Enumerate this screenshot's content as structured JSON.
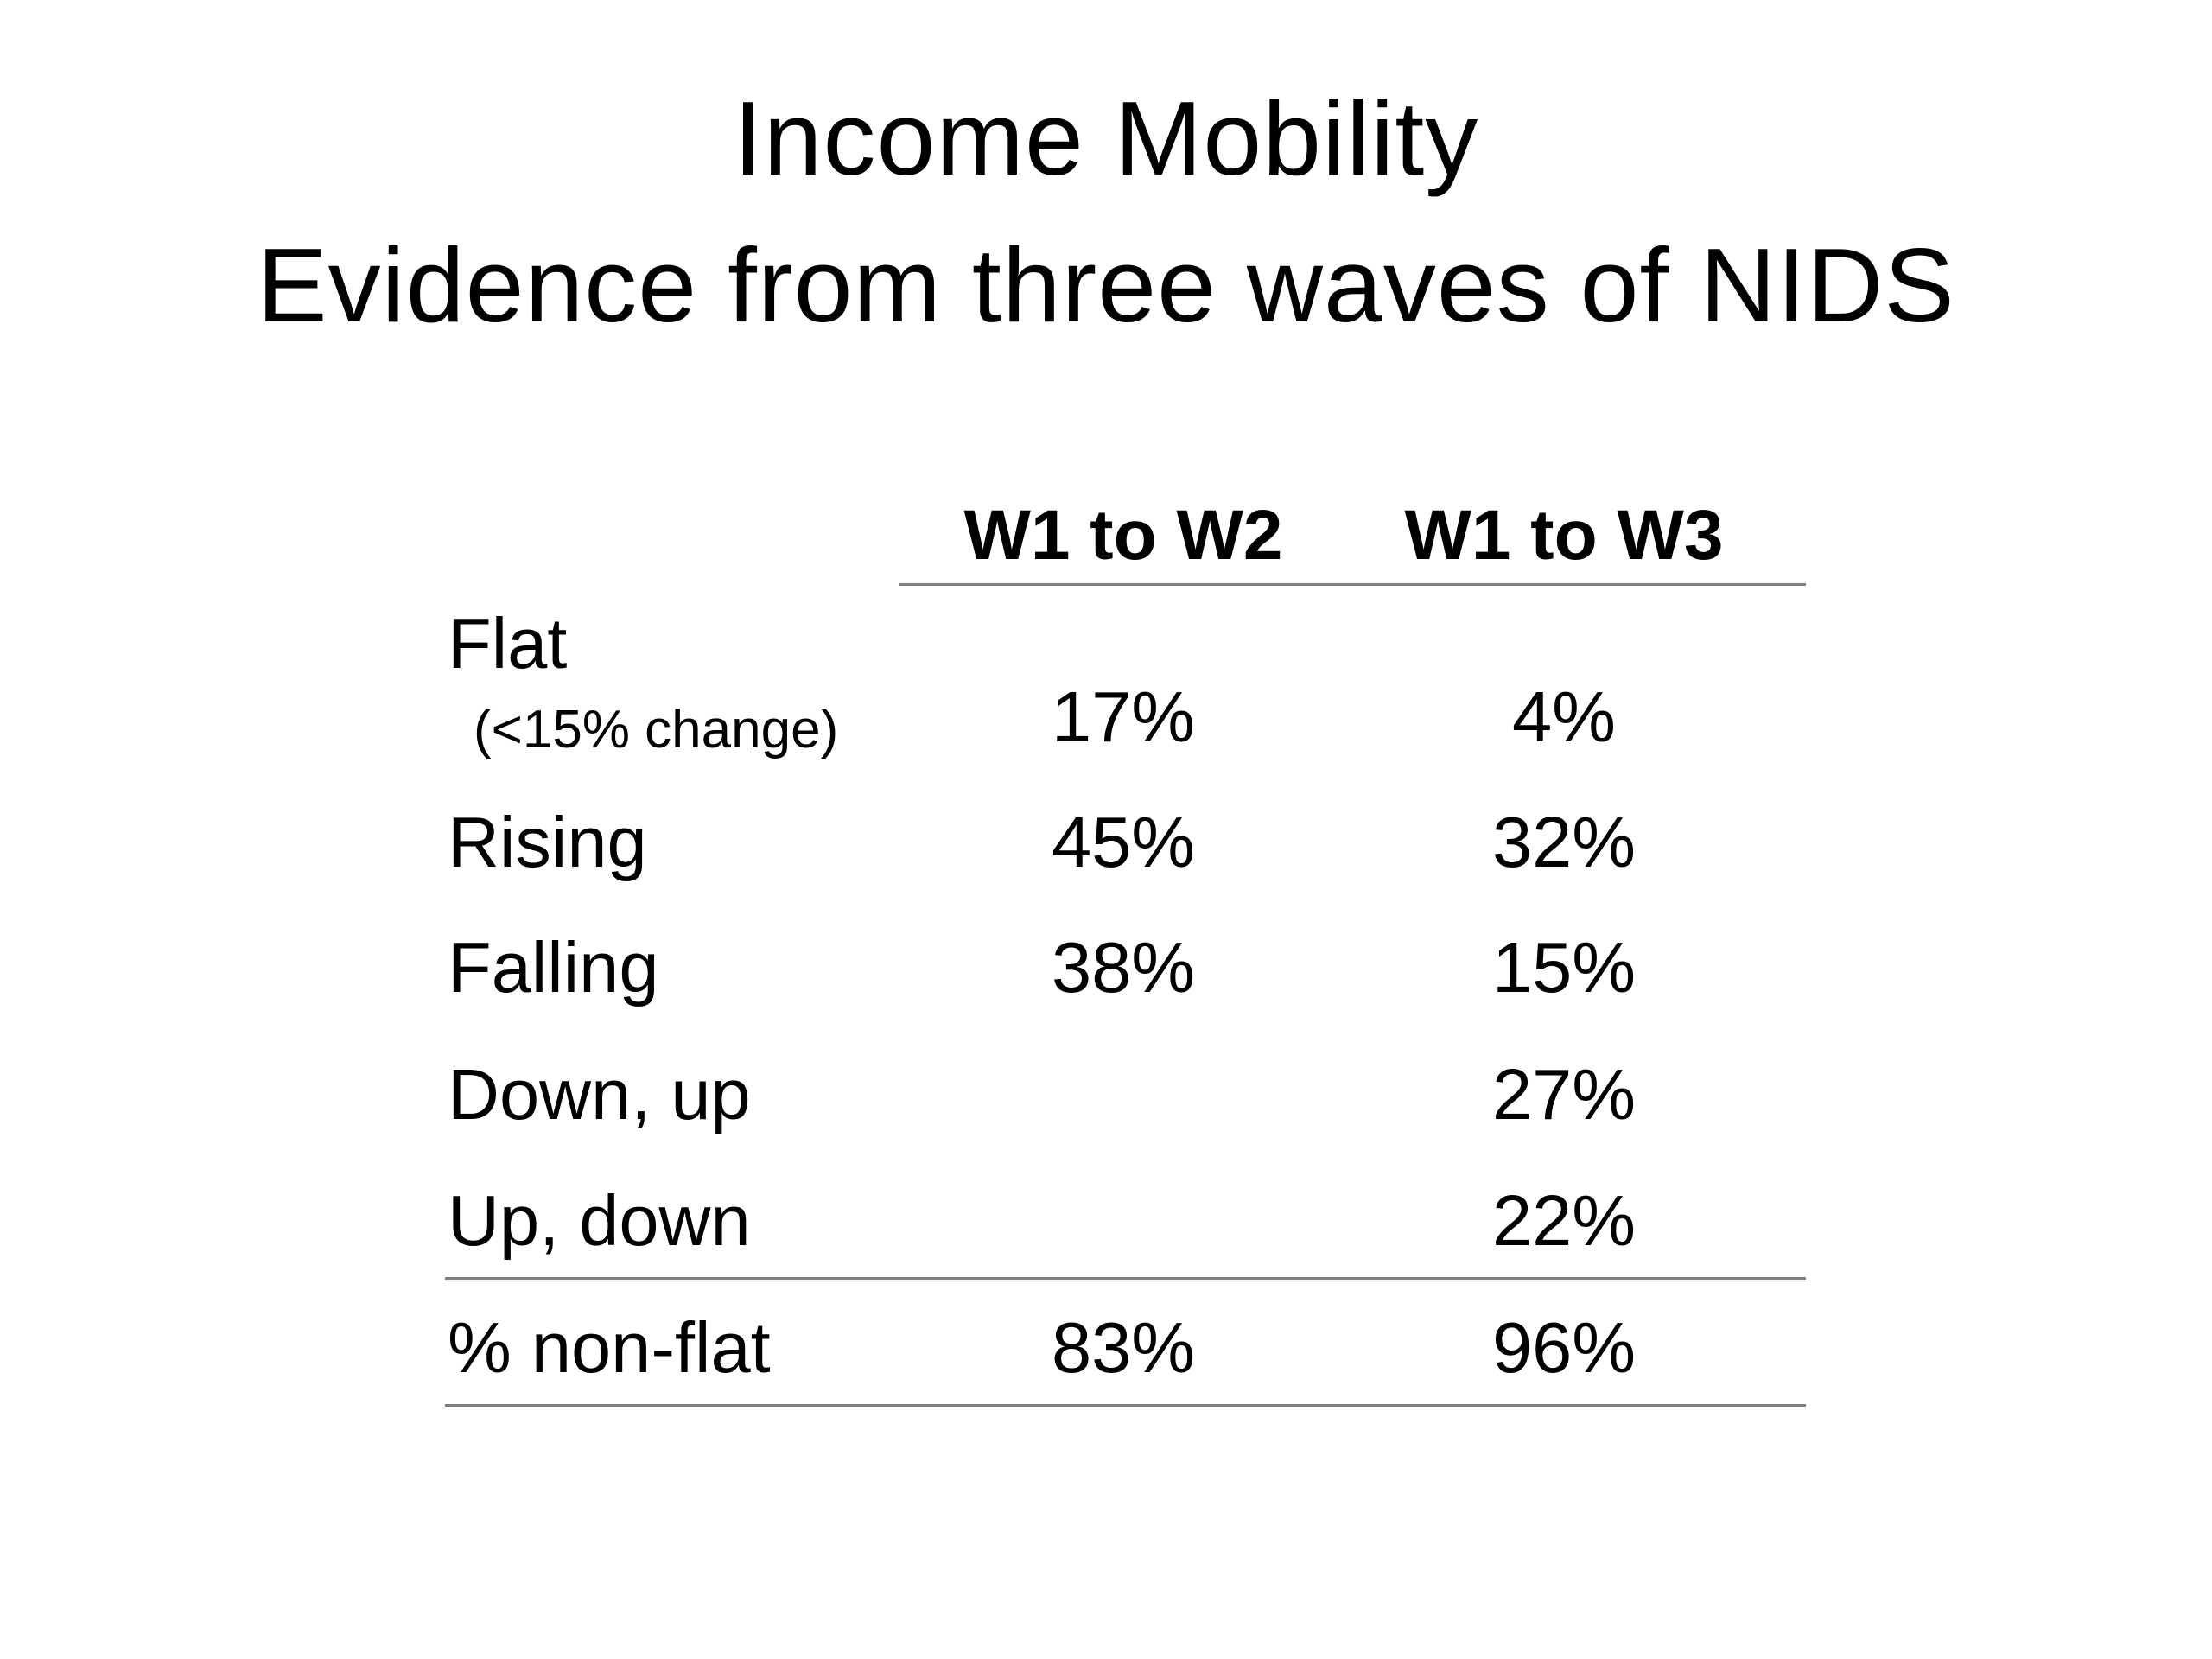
{
  "title": {
    "line1": "Income Mobility",
    "line2": "Evidence from three waves of NIDS"
  },
  "table": {
    "columns": [
      "W1 to W2",
      "W1 to W3"
    ],
    "rows": [
      {
        "label": "Flat",
        "sublabel": "(<15% change)",
        "w1_w2": "17%",
        "w1_w3": "4%"
      },
      {
        "label": "Rising",
        "w1_w2": "45%",
        "w1_w3": "32%"
      },
      {
        "label": "Falling",
        "w1_w2": "38%",
        "w1_w3": "15%"
      },
      {
        "label": "Down, up",
        "w1_w2": "",
        "w1_w3": "27%"
      },
      {
        "label": "Up, down",
        "w1_w2": "",
        "w1_w3": "22%"
      }
    ],
    "total": {
      "label": "% non-flat",
      "w1_w2": "83%",
      "w1_w3": "96%"
    }
  }
}
